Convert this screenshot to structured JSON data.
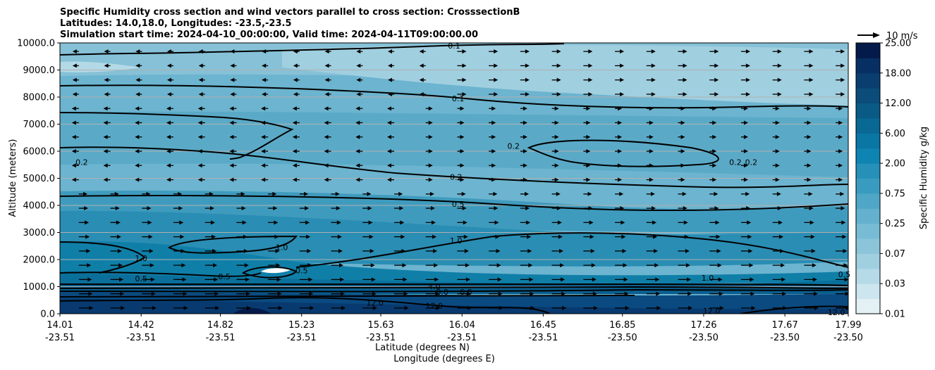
{
  "chart_data": {
    "type": "contour",
    "title": [
      "Specific Humidity cross section and wind vectors parallel to cross section: CrosssectionB",
      "Latitudes: 14.0,18.0, Longitudes: -23.5,-23.5",
      "Simulation start time: 2024-04-10_00:00:00, Valid time: 2024-04-11T09:00:00.00"
    ],
    "xlabel": "Latitude (degrees N)",
    "xlabel2": "Longitude (degrees E)",
    "ylabel": "Altitude (meters)",
    "ylim": [
      0,
      10000
    ],
    "y_ticks": [
      "0.0",
      "1000.0",
      "2000.0",
      "3000.0",
      "4000.0",
      "5000.0",
      "6000.0",
      "7000.0",
      "8000.0",
      "9000.0",
      "10000.0"
    ],
    "y_tick_values": [
      0,
      1000,
      2000,
      3000,
      4000,
      5000,
      6000,
      7000,
      8000,
      9000,
      10000
    ],
    "x_tick_lat": [
      "14.01",
      "14.42",
      "14.82",
      "15.23",
      "15.63",
      "16.04",
      "16.45",
      "16.85",
      "17.26",
      "17.67",
      "17.99"
    ],
    "x_tick_lon": [
      "-23.51",
      "-23.51",
      "-23.51",
      "-23.51",
      "-23.51",
      "-23.51",
      "-23.51",
      "-23.50",
      "-23.50",
      "-23.50",
      "-23.50"
    ],
    "x_tick_values": [
      14.01,
      14.42,
      14.82,
      15.23,
      15.63,
      16.04,
      16.45,
      16.85,
      17.26,
      17.67,
      17.99
    ],
    "xlim": [
      14.01,
      17.99
    ],
    "colorbar": {
      "label": "Specific Humidity g/kg",
      "ticks": [
        "0.01",
        "0.03",
        "0.07",
        "0.25",
        "0.75",
        "2.00",
        "6.00",
        "12.00",
        "18.00",
        "25.00"
      ],
      "levels": [
        0.01,
        0.02,
        0.03,
        0.05,
        0.07,
        0.1,
        0.25,
        0.5,
        0.75,
        1.0,
        2.0,
        4.0,
        6.0,
        8.0,
        12.0,
        15.0,
        18.0,
        20.0,
        25.0
      ]
    },
    "quiver_key": "10 m/s",
    "contour_labels": [
      {
        "text": "0.1",
        "x": 16.0,
        "y": 9900
      },
      {
        "text": "0.1",
        "x": 16.02,
        "y": 7950
      },
      {
        "text": "0.2",
        "x": 14.12,
        "y": 5600
      },
      {
        "text": "0.2",
        "x": 16.01,
        "y": 5050
      },
      {
        "text": "0.2",
        "x": 16.3,
        "y": 6200
      },
      {
        "text": "0.2",
        "x": 17.42,
        "y": 5600
      },
      {
        "text": "0.2",
        "x": 17.5,
        "y": 5600
      },
      {
        "text": "0.5",
        "x": 16.02,
        "y": 4050
      },
      {
        "text": "1.0",
        "x": 16.01,
        "y": 2700
      },
      {
        "text": "1.0",
        "x": 14.42,
        "y": 2050
      },
      {
        "text": "1.0",
        "x": 15.13,
        "y": 2450
      },
      {
        "text": "0.5",
        "x": 14.42,
        "y": 1300
      },
      {
        "text": "0.5",
        "x": 14.84,
        "y": 1380
      },
      {
        "text": "0.5",
        "x": 15.23,
        "y": 1600
      },
      {
        "text": "1.0",
        "x": 17.28,
        "y": 1320
      },
      {
        "text": "0.5",
        "x": 17.97,
        "y": 1450
      },
      {
        "text": "4.0",
        "x": 15.9,
        "y": 1000
      },
      {
        "text": "8.0",
        "x": 15.94,
        "y": 800
      },
      {
        "text": "6.0",
        "x": 16.06,
        "y": 800
      },
      {
        "text": "12.0",
        "x": 15.6,
        "y": 400
      },
      {
        "text": "12.0",
        "x": 15.9,
        "y": 300
      },
      {
        "text": "12.0",
        "x": 17.3,
        "y": 100
      },
      {
        "text": "12.0",
        "x": 17.93,
        "y": 50
      }
    ],
    "wind_direction_by_altitude": [
      {
        "min": 0,
        "max": 4800,
        "direction": "east"
      },
      {
        "min": 4800,
        "max": 7800,
        "direction": "west-upper-left / east-right"
      },
      {
        "min": 7800,
        "max": 10000,
        "direction": "east-right / west-left"
      }
    ]
  }
}
